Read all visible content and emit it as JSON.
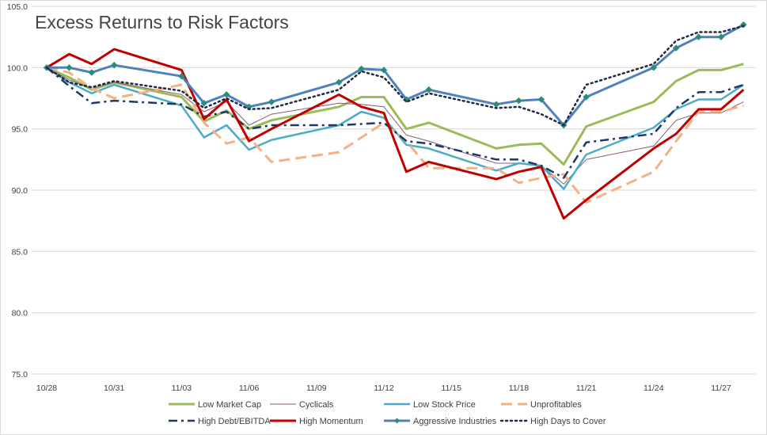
{
  "chart_data": {
    "type": "line",
    "title": "Excess Returns to Risk Factors",
    "xlabel": "",
    "ylabel": "",
    "ylim": [
      75,
      105
    ],
    "y_ticks": [
      "75.0",
      "80.0",
      "85.0",
      "90.0",
      "95.0",
      "100.0",
      "105.0"
    ],
    "y_tick_values": [
      75,
      80,
      85,
      90,
      95,
      100,
      105
    ],
    "x": [
      "10/28",
      "10/29",
      "10/30",
      "10/31",
      "11/01",
      "11/02",
      "11/03",
      "11/04",
      "11/05",
      "11/06",
      "11/07",
      "11/08",
      "11/09",
      "11/10",
      "11/11",
      "11/12",
      "11/13",
      "11/14",
      "11/15",
      "11/16",
      "11/17",
      "11/18",
      "11/19",
      "11/20",
      "11/21",
      "11/22",
      "11/23",
      "11/24",
      "11/25",
      "11/26",
      "11/27",
      "11/28"
    ],
    "x_tick_labels": [
      "10/28",
      "10/31",
      "11/03",
      "11/06",
      "11/09",
      "11/12",
      "11/15",
      "11/18",
      "11/21",
      "11/24",
      "11/27"
    ],
    "x_tick_positions": [
      0,
      3,
      6,
      9,
      12,
      15,
      18,
      21,
      24,
      27,
      30
    ],
    "grid": true,
    "legend_position": "bottom",
    "series": [
      {
        "name": "Low Market Cap",
        "color": "#9BBB59",
        "dash": "solid",
        "width": 3,
        "points": [
          [
            0,
            100
          ],
          [
            1,
            99.2
          ],
          [
            2,
            98.2
          ],
          [
            3,
            98.8
          ],
          [
            6,
            97.6
          ],
          [
            7,
            95.6
          ],
          [
            8,
            96.5
          ],
          [
            9,
            95.0
          ],
          [
            10,
            95.7
          ],
          [
            13,
            96.8
          ],
          [
            14,
            97.6
          ],
          [
            15,
            97.6
          ],
          [
            16,
            95.0
          ],
          [
            17,
            95.5
          ],
          [
            20,
            93.4
          ],
          [
            21,
            93.7
          ],
          [
            22,
            93.8
          ],
          [
            23,
            92.1
          ],
          [
            24,
            95.2
          ],
          [
            27,
            97.2
          ],
          [
            28,
            98.9
          ],
          [
            29,
            99.8
          ],
          [
            30,
            99.8
          ],
          [
            31,
            100.3
          ]
        ]
      },
      {
        "name": "Cyclicals",
        "color": "#8A5A78",
        "dash": "solid",
        "width": 1,
        "points": [
          [
            0,
            100
          ],
          [
            1,
            99.0
          ],
          [
            2,
            98.3
          ],
          [
            3,
            98.8
          ],
          [
            6,
            97.8
          ],
          [
            7,
            96.4
          ],
          [
            8,
            97.2
          ],
          [
            9,
            95.3
          ],
          [
            10,
            96.2
          ],
          [
            13,
            97.1
          ],
          [
            14,
            97.0
          ],
          [
            15,
            96.8
          ],
          [
            16,
            94.5
          ],
          [
            17,
            94.0
          ],
          [
            20,
            92.2
          ],
          [
            21,
            92.2
          ],
          [
            22,
            92.0
          ],
          [
            23,
            90.5
          ],
          [
            24,
            92.5
          ],
          [
            27,
            93.6
          ],
          [
            28,
            95.7
          ],
          [
            29,
            96.3
          ],
          [
            30,
            96.3
          ],
          [
            31,
            97.2
          ]
        ]
      },
      {
        "name": "Low Stock Price",
        "color": "#4BACC6",
        "dash": "solid",
        "width": 2.5,
        "points": [
          [
            0,
            100
          ],
          [
            1,
            98.8
          ],
          [
            2,
            97.9
          ],
          [
            3,
            98.6
          ],
          [
            6,
            96.9
          ],
          [
            7,
            94.3
          ],
          [
            8,
            95.3
          ],
          [
            9,
            93.3
          ],
          [
            10,
            94.1
          ],
          [
            13,
            95.3
          ],
          [
            14,
            96.4
          ],
          [
            15,
            95.9
          ],
          [
            16,
            93.7
          ],
          [
            17,
            93.4
          ],
          [
            20,
            91.6
          ],
          [
            21,
            92.2
          ],
          [
            22,
            92.0
          ],
          [
            23,
            90.1
          ],
          [
            24,
            92.9
          ],
          [
            27,
            95.1
          ],
          [
            28,
            96.6
          ],
          [
            29,
            97.4
          ],
          [
            30,
            97.4
          ],
          [
            31,
            98.6
          ]
        ]
      },
      {
        "name": "Unprofitables",
        "color": "#F4B183",
        "dash": "long",
        "width": 3,
        "points": [
          [
            0,
            100
          ],
          [
            1,
            99.6
          ],
          [
            2,
            98.3
          ],
          [
            3,
            97.5
          ],
          [
            6,
            98.6
          ],
          [
            7,
            95.5
          ],
          [
            8,
            93.8
          ],
          [
            9,
            94.3
          ],
          [
            10,
            92.3
          ],
          [
            13,
            93.1
          ],
          [
            14,
            94.3
          ],
          [
            15,
            95.5
          ],
          [
            16,
            94.0
          ],
          [
            17,
            91.8
          ],
          [
            20,
            91.8
          ],
          [
            21,
            90.6
          ],
          [
            22,
            91.0
          ],
          [
            23,
            91.3
          ],
          [
            24,
            89.0
          ],
          [
            27,
            91.5
          ],
          [
            28,
            94.0
          ],
          [
            29,
            96.4
          ],
          [
            30,
            96.4
          ],
          [
            31,
            96.9
          ]
        ]
      },
      {
        "name": "High Debt/EBITDA",
        "color": "#1F3864",
        "dash": "dashdot",
        "width": 2.5,
        "points": [
          [
            0,
            100
          ],
          [
            1,
            98.5
          ],
          [
            2,
            97.1
          ],
          [
            3,
            97.3
          ],
          [
            6,
            97.0
          ],
          [
            7,
            96.0
          ],
          [
            8,
            96.4
          ],
          [
            9,
            95.0
          ],
          [
            10,
            95.3
          ],
          [
            13,
            95.3
          ],
          [
            14,
            95.4
          ],
          [
            15,
            95.5
          ],
          [
            16,
            94.0
          ],
          [
            17,
            93.8
          ],
          [
            20,
            92.5
          ],
          [
            21,
            92.5
          ],
          [
            22,
            92.0
          ],
          [
            23,
            91.0
          ],
          [
            24,
            93.9
          ],
          [
            27,
            94.6
          ],
          [
            28,
            96.7
          ],
          [
            29,
            98.0
          ],
          [
            30,
            98.0
          ],
          [
            31,
            98.6
          ]
        ]
      },
      {
        "name": "High Momentum",
        "color": "#C00000",
        "dash": "solid",
        "width": 3,
        "points": [
          [
            0,
            100
          ],
          [
            1,
            101.1
          ],
          [
            2,
            100.3
          ],
          [
            3,
            101.5
          ],
          [
            6,
            99.8
          ],
          [
            7,
            95.8
          ],
          [
            8,
            97.4
          ],
          [
            9,
            94.0
          ],
          [
            10,
            95.0
          ],
          [
            13,
            97.8
          ],
          [
            14,
            96.8
          ],
          [
            15,
            96.3
          ],
          [
            16,
            91.5
          ],
          [
            17,
            92.3
          ],
          [
            20,
            90.9
          ],
          [
            21,
            91.5
          ],
          [
            22,
            91.9
          ],
          [
            23,
            87.7
          ],
          [
            24,
            89.2
          ],
          [
            27,
            93.4
          ],
          [
            28,
            94.6
          ],
          [
            29,
            96.6
          ],
          [
            30,
            96.6
          ],
          [
            31,
            98.2
          ]
        ]
      },
      {
        "name": "Aggressive Industries",
        "color": "#4F81BD",
        "dash": "solid",
        "width": 3,
        "marker": "diamond",
        "marker_color": "#2E8B7A",
        "points": [
          [
            0,
            100
          ],
          [
            1,
            100.0
          ],
          [
            2,
            99.6
          ],
          [
            3,
            100.2
          ],
          [
            6,
            99.3
          ],
          [
            7,
            97.1
          ],
          [
            8,
            97.8
          ],
          [
            9,
            96.8
          ],
          [
            10,
            97.2
          ],
          [
            13,
            98.8
          ],
          [
            14,
            99.9
          ],
          [
            15,
            99.8
          ],
          [
            16,
            97.4
          ],
          [
            17,
            98.2
          ],
          [
            20,
            97.0
          ],
          [
            21,
            97.3
          ],
          [
            22,
            97.4
          ],
          [
            23,
            95.3
          ],
          [
            24,
            97.6
          ],
          [
            27,
            100.0
          ],
          [
            28,
            101.6
          ],
          [
            29,
            102.5
          ],
          [
            30,
            102.5
          ],
          [
            31,
            103.5
          ]
        ]
      },
      {
        "name": "High Days to Cover",
        "color": "#1F2A44",
        "dash": "dotted",
        "width": 2.5,
        "points": [
          [
            0,
            100
          ],
          [
            1,
            98.8
          ],
          [
            2,
            98.4
          ],
          [
            3,
            98.9
          ],
          [
            6,
            98.1
          ],
          [
            7,
            96.7
          ],
          [
            8,
            97.5
          ],
          [
            9,
            96.6
          ],
          [
            10,
            96.7
          ],
          [
            13,
            98.2
          ],
          [
            14,
            99.7
          ],
          [
            15,
            99.2
          ],
          [
            16,
            97.2
          ],
          [
            17,
            97.9
          ],
          [
            20,
            96.7
          ],
          [
            21,
            96.8
          ],
          [
            22,
            96.2
          ],
          [
            23,
            95.3
          ],
          [
            24,
            98.6
          ],
          [
            27,
            100.3
          ],
          [
            28,
            102.2
          ],
          [
            29,
            102.9
          ],
          [
            30,
            102.9
          ],
          [
            31,
            103.4
          ]
        ]
      }
    ]
  }
}
